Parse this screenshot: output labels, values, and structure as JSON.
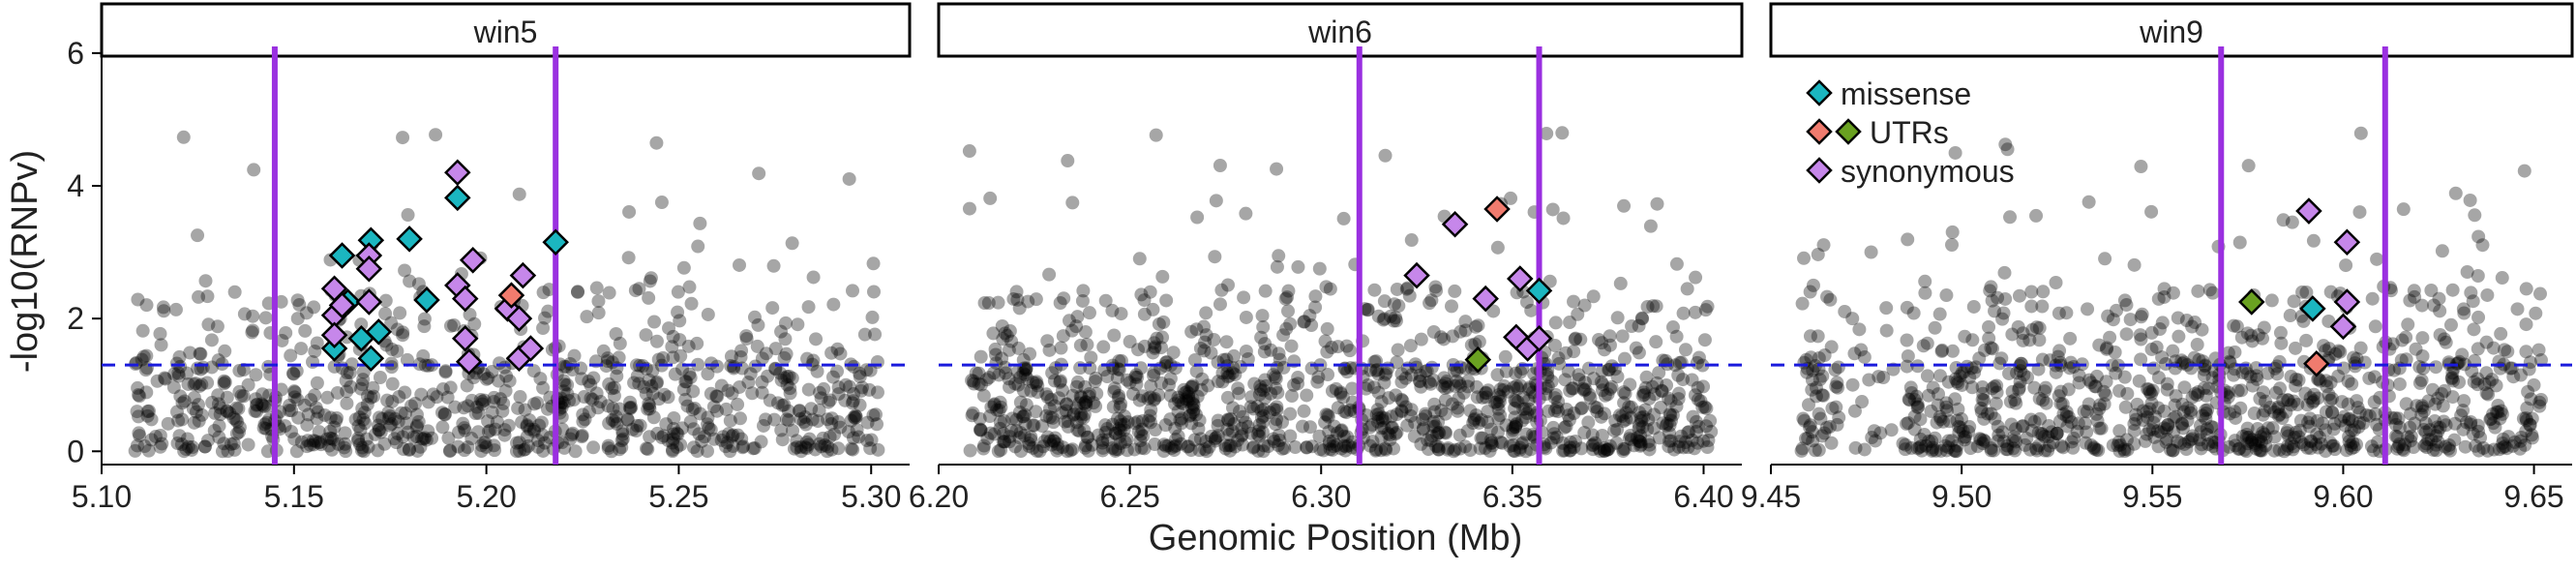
{
  "chart_data": {
    "type": "scatter",
    "ylabel": "-log10(RNPv)",
    "xlabel": "Genomic Position (Mb)",
    "ylim": [
      -0.2,
      6.1
    ],
    "yticks": [
      0,
      2,
      4,
      6
    ],
    "threshold": 1.3,
    "legend": {
      "placement": "top-left of win9 panel",
      "entries": [
        {
          "label": "missense",
          "colors": [
            "#1bb6c0"
          ]
        },
        {
          "label": "UTRs",
          "colors": [
            "#f07b6e",
            "#6aa121"
          ]
        },
        {
          "label": "synonymous",
          "colors": [
            "#c687ea"
          ]
        }
      ]
    },
    "colors": {
      "background_point": "#000000",
      "missense": "#1bb6c0",
      "utr5": "#f07b6e",
      "utr3": "#6aa121",
      "synonymous": "#c687ea",
      "window_line": "#9a30e0",
      "threshold_line": "#1a1adc"
    },
    "panels": [
      {
        "name": "win5",
        "xlim": [
          5.1,
          5.31
        ],
        "xticks": [
          5.1,
          5.15,
          5.2,
          5.25,
          5.3
        ],
        "xtick_labels": [
          "5.10",
          "5.15",
          "5.20",
          "5.25",
          "5.30"
        ],
        "window_lines": [
          5.145,
          5.218
        ],
        "background_count": 900,
        "highlights": [
          {
            "x": 5.1625,
            "y": 2.95,
            "cat": "missense"
          },
          {
            "x": 5.17,
            "y": 3.18,
            "cat": "missense"
          },
          {
            "x": 5.18,
            "y": 3.2,
            "cat": "missense"
          },
          {
            "x": 5.1925,
            "y": 3.82,
            "cat": "missense"
          },
          {
            "x": 5.1845,
            "y": 2.28,
            "cat": "missense"
          },
          {
            "x": 5.164,
            "y": 2.25,
            "cat": "missense"
          },
          {
            "x": 5.172,
            "y": 1.8,
            "cat": "missense"
          },
          {
            "x": 5.1675,
            "y": 1.7,
            "cat": "missense"
          },
          {
            "x": 5.17,
            "y": 1.4,
            "cat": "missense"
          },
          {
            "x": 5.1605,
            "y": 1.55,
            "cat": "missense"
          },
          {
            "x": 5.218,
            "y": 3.15,
            "cat": "missense"
          },
          {
            "x": 5.1925,
            "y": 4.2,
            "cat": "synonymous"
          },
          {
            "x": 5.1695,
            "y": 2.95,
            "cat": "synonymous"
          },
          {
            "x": 5.1965,
            "y": 2.88,
            "cat": "synonymous"
          },
          {
            "x": 5.1695,
            "y": 2.75,
            "cat": "synonymous"
          },
          {
            "x": 5.1605,
            "y": 2.45,
            "cat": "synonymous"
          },
          {
            "x": 5.1925,
            "y": 2.5,
            "cat": "synonymous"
          },
          {
            "x": 5.1945,
            "y": 2.3,
            "cat": "synonymous"
          },
          {
            "x": 5.1695,
            "y": 2.25,
            "cat": "synonymous"
          },
          {
            "x": 5.1605,
            "y": 2.05,
            "cat": "synonymous"
          },
          {
            "x": 5.1625,
            "y": 2.2,
            "cat": "synonymous"
          },
          {
            "x": 5.2055,
            "y": 2.15,
            "cat": "synonymous"
          },
          {
            "x": 5.2085,
            "y": 2.0,
            "cat": "synonymous"
          },
          {
            "x": 5.2095,
            "y": 2.65,
            "cat": "synonymous"
          },
          {
            "x": 5.1605,
            "y": 1.75,
            "cat": "synonymous"
          },
          {
            "x": 5.1945,
            "y": 1.7,
            "cat": "synonymous"
          },
          {
            "x": 5.2085,
            "y": 1.4,
            "cat": "synonymous"
          },
          {
            "x": 5.2115,
            "y": 1.55,
            "cat": "synonymous"
          },
          {
            "x": 5.1955,
            "y": 1.35,
            "cat": "synonymous"
          },
          {
            "x": 5.2065,
            "y": 2.35,
            "cat": "utr5"
          }
        ]
      },
      {
        "name": "win6",
        "xlim": [
          6.2,
          6.41
        ],
        "xticks": [
          6.2,
          6.25,
          6.3,
          6.35,
          6.4
        ],
        "xtick_labels": [
          "6.20",
          "6.25",
          "6.30",
          "6.35",
          "6.40"
        ],
        "window_lines": [
          6.31,
          6.357
        ],
        "background_count": 1200,
        "highlights": [
          {
            "x": 6.357,
            "y": 2.42,
            "cat": "missense"
          },
          {
            "x": 6.346,
            "y": 3.65,
            "cat": "utr5"
          },
          {
            "x": 6.341,
            "y": 1.38,
            "cat": "utr3"
          },
          {
            "x": 6.335,
            "y": 3.42,
            "cat": "synonymous"
          },
          {
            "x": 6.325,
            "y": 2.65,
            "cat": "synonymous"
          },
          {
            "x": 6.343,
            "y": 2.3,
            "cat": "synonymous"
          },
          {
            "x": 6.352,
            "y": 2.6,
            "cat": "synonymous"
          },
          {
            "x": 6.351,
            "y": 1.72,
            "cat": "synonymous"
          },
          {
            "x": 6.354,
            "y": 1.55,
            "cat": "synonymous"
          },
          {
            "x": 6.357,
            "y": 1.7,
            "cat": "synonymous"
          }
        ]
      },
      {
        "name": "win9",
        "xlim": [
          9.45,
          9.66
        ],
        "xticks": [
          9.45,
          9.5,
          9.55,
          9.6,
          9.65
        ],
        "xtick_labels": [
          "9.45",
          "9.50",
          "9.55",
          "9.60",
          "9.65"
        ],
        "window_lines": [
          9.568,
          9.611
        ],
        "background_count": 1100,
        "highlights": [
          {
            "x": 9.592,
            "y": 2.15,
            "cat": "missense"
          },
          {
            "x": 9.576,
            "y": 2.25,
            "cat": "utr3"
          },
          {
            "x": 9.593,
            "y": 1.32,
            "cat": "utr5"
          },
          {
            "x": 9.591,
            "y": 3.62,
            "cat": "synonymous"
          },
          {
            "x": 9.601,
            "y": 3.15,
            "cat": "synonymous"
          },
          {
            "x": 9.601,
            "y": 2.25,
            "cat": "synonymous"
          },
          {
            "x": 9.6,
            "y": 1.88,
            "cat": "synonymous"
          }
        ]
      }
    ]
  }
}
